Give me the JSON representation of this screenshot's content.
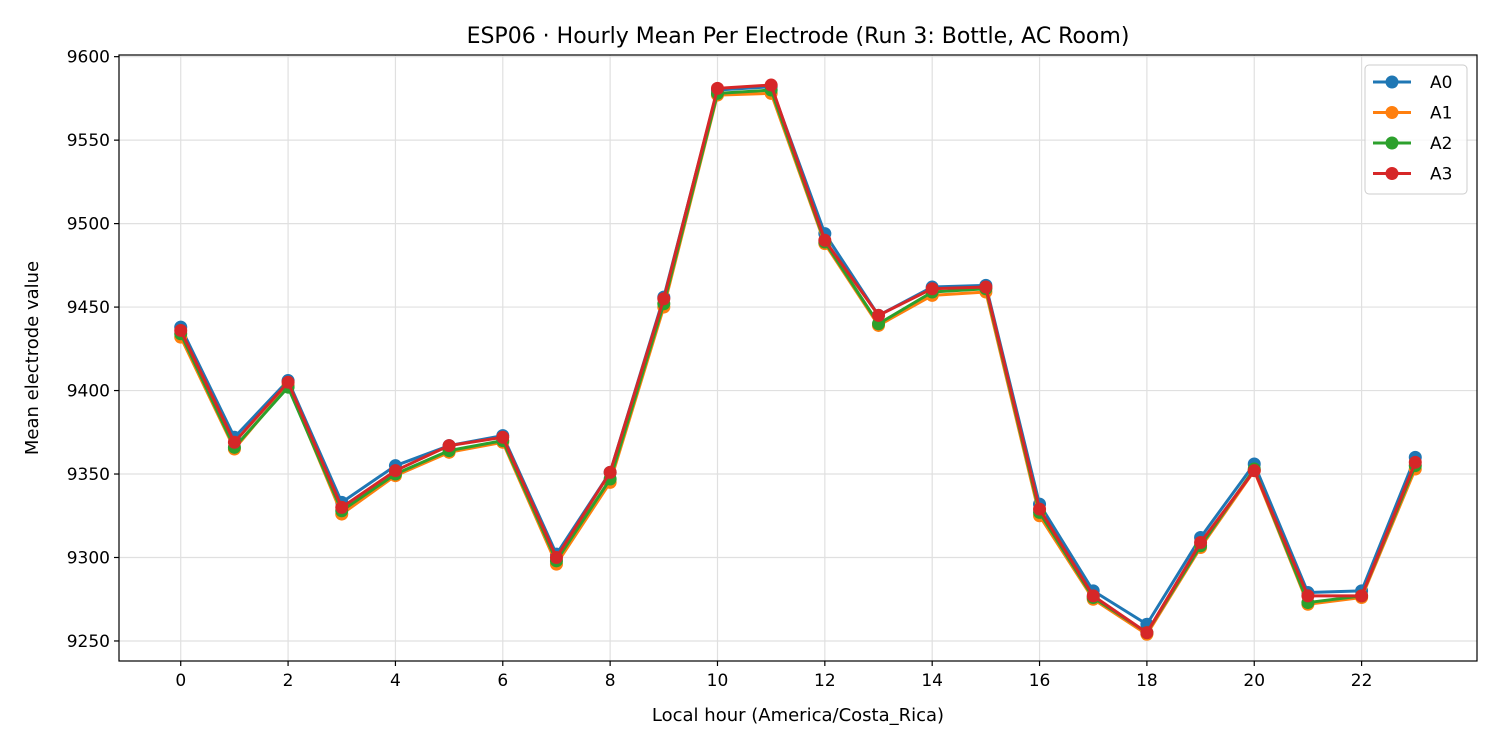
{
  "chart_data": {
    "type": "line",
    "title": "ESP06 · Hourly Mean Per Electrode (Run 3: Bottle, AC Room)",
    "xlabel": "Local hour (America/Costa_Rica)",
    "ylabel": "Mean electrode value",
    "xlim": [
      -1.15,
      24.15
    ],
    "ylim": [
      9238,
      9601
    ],
    "xticks": [
      0,
      2,
      4,
      6,
      8,
      10,
      12,
      14,
      16,
      18,
      20,
      22
    ],
    "yticks": [
      9250,
      9300,
      9350,
      9400,
      9450,
      9500,
      9550,
      9600
    ],
    "grid": true,
    "legend": "top-right",
    "x": [
      0,
      1,
      2,
      3,
      4,
      5,
      6,
      7,
      8,
      9,
      10,
      11,
      12,
      13,
      14,
      15,
      16,
      17,
      18,
      19,
      20,
      21,
      22,
      23
    ],
    "series": [
      {
        "name": "A0",
        "color": "#1f77b4",
        "values": [
          9438,
          9372,
          9406,
          9333,
          9355,
          9367,
          9373,
          9302,
          9351,
          9456,
          9580,
          9582,
          9494,
          9445,
          9462,
          9463,
          9332,
          9280,
          9260,
          9312,
          9356,
          9279,
          9280,
          9360
        ]
      },
      {
        "name": "A1",
        "color": "#ff7f0e",
        "values": [
          9432,
          9365,
          9403,
          9326,
          9349,
          9363,
          9369,
          9296,
          9345,
          9450,
          9577,
          9578,
          9488,
          9439,
          9457,
          9459,
          9325,
          9275,
          9254,
          9306,
          9352,
          9272,
          9276,
          9353
        ]
      },
      {
        "name": "A2",
        "color": "#2ca02c",
        "values": [
          9434,
          9366,
          9402,
          9328,
          9350,
          9364,
          9370,
          9298,
          9347,
          9452,
          9578,
          9580,
          9489,
          9440,
          9459,
          9461,
          9327,
          9276,
          9255,
          9307,
          9353,
          9273,
          9277,
          9355
        ]
      },
      {
        "name": "A3",
        "color": "#d62728",
        "values": [
          9436,
          9369,
          9405,
          9330,
          9352,
          9367,
          9372,
          9300,
          9351,
          9455,
          9581,
          9583,
          9490,
          9445,
          9461,
          9462,
          9329,
          9277,
          9255,
          9309,
          9352,
          9277,
          9277,
          9357
        ]
      }
    ]
  }
}
